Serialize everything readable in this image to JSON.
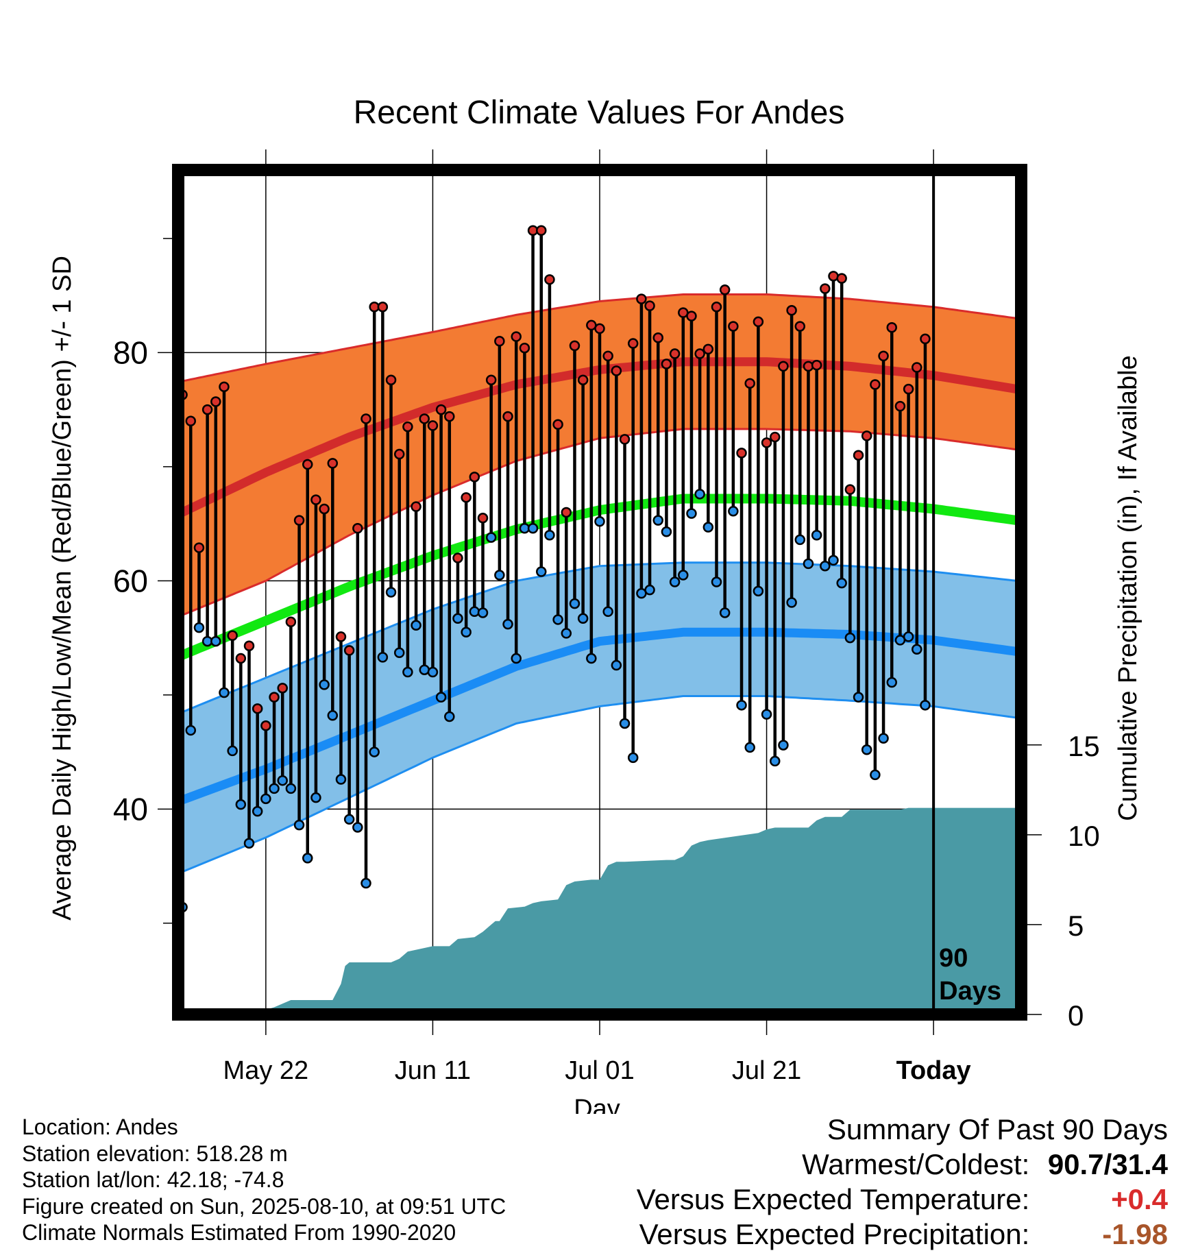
{
  "chart_data": {
    "type": "line",
    "title": "Recent Climate Values For Andes",
    "xlabel": "Day",
    "ylabel_left": "Average Daily High/Low/Mean (Red/Blue/Green) +/- 1 SD",
    "ylabel_right": "Cumulative Precipitation (in), If Available",
    "x_tick_labels": [
      "May 22",
      "Jun 11",
      "Jul 01",
      "Jul 21",
      "Today"
    ],
    "x_tick_days": [
      10,
      30,
      50,
      70,
      90
    ],
    "x_range_days": [
      -0.5,
      100.5
    ],
    "y_left_ticks": [
      40,
      60,
      80
    ],
    "y_left_range": [
      22,
      96
    ],
    "y_right_ticks": [
      0,
      5,
      10,
      15
    ],
    "y_right_range": [
      0,
      47
    ],
    "today_marker_label": "90 Days",
    "normals": {
      "days": [
        0,
        10,
        20,
        30,
        40,
        50,
        60,
        70,
        80,
        90,
        100
      ],
      "high_mean": [
        66,
        69.5,
        72.6,
        75.2,
        77.2,
        78.5,
        79.2,
        79.2,
        78.8,
        78.0,
        76.8
      ],
      "high_sd_upper": [
        77.5,
        79.0,
        80.4,
        81.8,
        83.3,
        84.5,
        85.1,
        85.1,
        84.7,
        84.0,
        83.0
      ],
      "high_sd_lower": [
        57.0,
        60.0,
        64.0,
        67.5,
        70.5,
        72.5,
        73.3,
        73.3,
        73.1,
        72.5,
        71.5
      ],
      "mean": [
        53.5,
        56.5,
        59.5,
        62.2,
        64.5,
        66.2,
        67.2,
        67.2,
        67.0,
        66.3,
        65.3
      ],
      "low_mean": [
        40.8,
        43.5,
        46.5,
        49.5,
        52.5,
        54.7,
        55.5,
        55.5,
        55.3,
        54.8,
        53.8
      ],
      "low_sd_upper": [
        48.5,
        51.5,
        54.5,
        57.5,
        60.0,
        61.3,
        61.6,
        61.6,
        61.3,
        60.8,
        60.0
      ],
      "low_sd_lower": [
        34.5,
        37.5,
        41.0,
        44.5,
        47.5,
        49.0,
        49.9,
        49.9,
        49.5,
        49.0,
        48.0
      ]
    },
    "series": [
      {
        "name": "High",
        "color": "#e0302c",
        "values": [
          76.3,
          74.0,
          62.9,
          75.0,
          75.7,
          77.0,
          55.2,
          53.2,
          54.3,
          48.8,
          47.3,
          49.8,
          50.6,
          56.4,
          65.3,
          70.2,
          67.1,
          66.3,
          70.3,
          55.1,
          53.9,
          64.6,
          74.2,
          84.0,
          84.0,
          77.6,
          71.1,
          73.5,
          66.5,
          74.2,
          73.6,
          75.0,
          74.4,
          62.0,
          67.3,
          69.1,
          65.5,
          77.6,
          81.0,
          74.4,
          81.4,
          80.4,
          90.7,
          90.7,
          86.4,
          73.7,
          66.0,
          80.6,
          77.6,
          82.4,
          82.1,
          79.7,
          78.4,
          72.4,
          80.8,
          84.7,
          84.1,
          81.3,
          79.0,
          79.9,
          83.5,
          83.2,
          79.9,
          80.3,
          84.0,
          85.5,
          82.3,
          71.2,
          77.3,
          82.7,
          72.1,
          72.6,
          78.8,
          83.7,
          82.3,
          78.8,
          78.9,
          85.6,
          86.7,
          86.5,
          68.0,
          71.0,
          72.7,
          77.2,
          79.7,
          82.2,
          75.3,
          76.8,
          78.7,
          81.2
        ]
      },
      {
        "name": "Low",
        "color": "#1e8ee0",
        "values": [
          31.4,
          46.9,
          55.9,
          54.7,
          54.7,
          50.2,
          45.1,
          40.4,
          37.0,
          39.8,
          40.9,
          41.8,
          42.5,
          41.8,
          38.6,
          35.7,
          41.0,
          50.9,
          48.2,
          42.6,
          39.1,
          38.4,
          33.5,
          45.0,
          53.3,
          59.0,
          53.7,
          52.0,
          56.1,
          52.2,
          52.0,
          49.8,
          48.1,
          56.7,
          55.5,
          57.3,
          57.2,
          63.8,
          60.5,
          56.2,
          53.2,
          64.6,
          64.6,
          60.8,
          64.0,
          56.6,
          55.4,
          58.0,
          56.7,
          53.2,
          65.2,
          57.3,
          52.6,
          47.5,
          44.5,
          58.9,
          59.2,
          65.3,
          64.3,
          59.9,
          60.5,
          65.9,
          67.6,
          64.7,
          59.9,
          57.2,
          66.1,
          49.1,
          45.4,
          59.1,
          48.3,
          44.2,
          45.6,
          58.1,
          63.6,
          61.5,
          64.0,
          61.3,
          61.8,
          59.8,
          55.0,
          49.8,
          45.2,
          43.0,
          46.2,
          51.1,
          54.8,
          55.1,
          54.0,
          49.1
        ]
      },
      {
        "name": "Cumulative Precipitation",
        "color": "#4a9aa5",
        "units": "in",
        "days": [
          0,
          8.5,
          9.5,
          11,
          12,
          13,
          18,
          19,
          19.5,
          20,
          25,
          26,
          26.5,
          27,
          29,
          30,
          32,
          33,
          35,
          36,
          37,
          37.5,
          38,
          39,
          41,
          42,
          43,
          45,
          46,
          47,
          49,
          50,
          51,
          52,
          53,
          58,
          59,
          60,
          61,
          62,
          63,
          69,
          70,
          71,
          75,
          76,
          77,
          79,
          80,
          81,
          86,
          87,
          100
        ],
        "values": [
          0,
          0,
          0.2,
          0.4,
          0.6,
          0.8,
          0.8,
          1.7,
          2.7,
          2.9,
          2.9,
          3.1,
          3.3,
          3.5,
          3.7,
          3.8,
          3.8,
          4.2,
          4.3,
          4.6,
          5.0,
          5.2,
          5.2,
          5.9,
          6.0,
          6.2,
          6.3,
          6.4,
          7.2,
          7.4,
          7.5,
          7.5,
          8.3,
          8.5,
          8.5,
          8.6,
          8.6,
          8.8,
          9.4,
          9.6,
          9.7,
          10.1,
          10.3,
          10.4,
          10.4,
          10.8,
          11.0,
          11.0,
          11.4,
          11.4,
          11.4,
          11.5,
          11.5
        ]
      }
    ],
    "grid": true,
    "legend": "none"
  },
  "info": {
    "location": "Location: Andes",
    "elevation": "Station elevation: 518.28 m",
    "latlon": "Station lat/lon: 42.18; -74.8",
    "created": "Figure created on Sun, 2025-08-10, at 09:51 UTC",
    "normals": "Climate Normals Estimated From 1990-2020"
  },
  "summary": {
    "title": "Summary Of Past 90 Days",
    "warmest_label": "Warmest/Coldest:",
    "warmest_value": "90.7/31.4",
    "temp_label": "Versus Expected Temperature:",
    "temp_value": "+0.4",
    "temp_color": "#d92b2b",
    "precip_label": "Versus Expected Precipitation:",
    "precip_value": "-1.98",
    "precip_color": "#a8552a"
  }
}
